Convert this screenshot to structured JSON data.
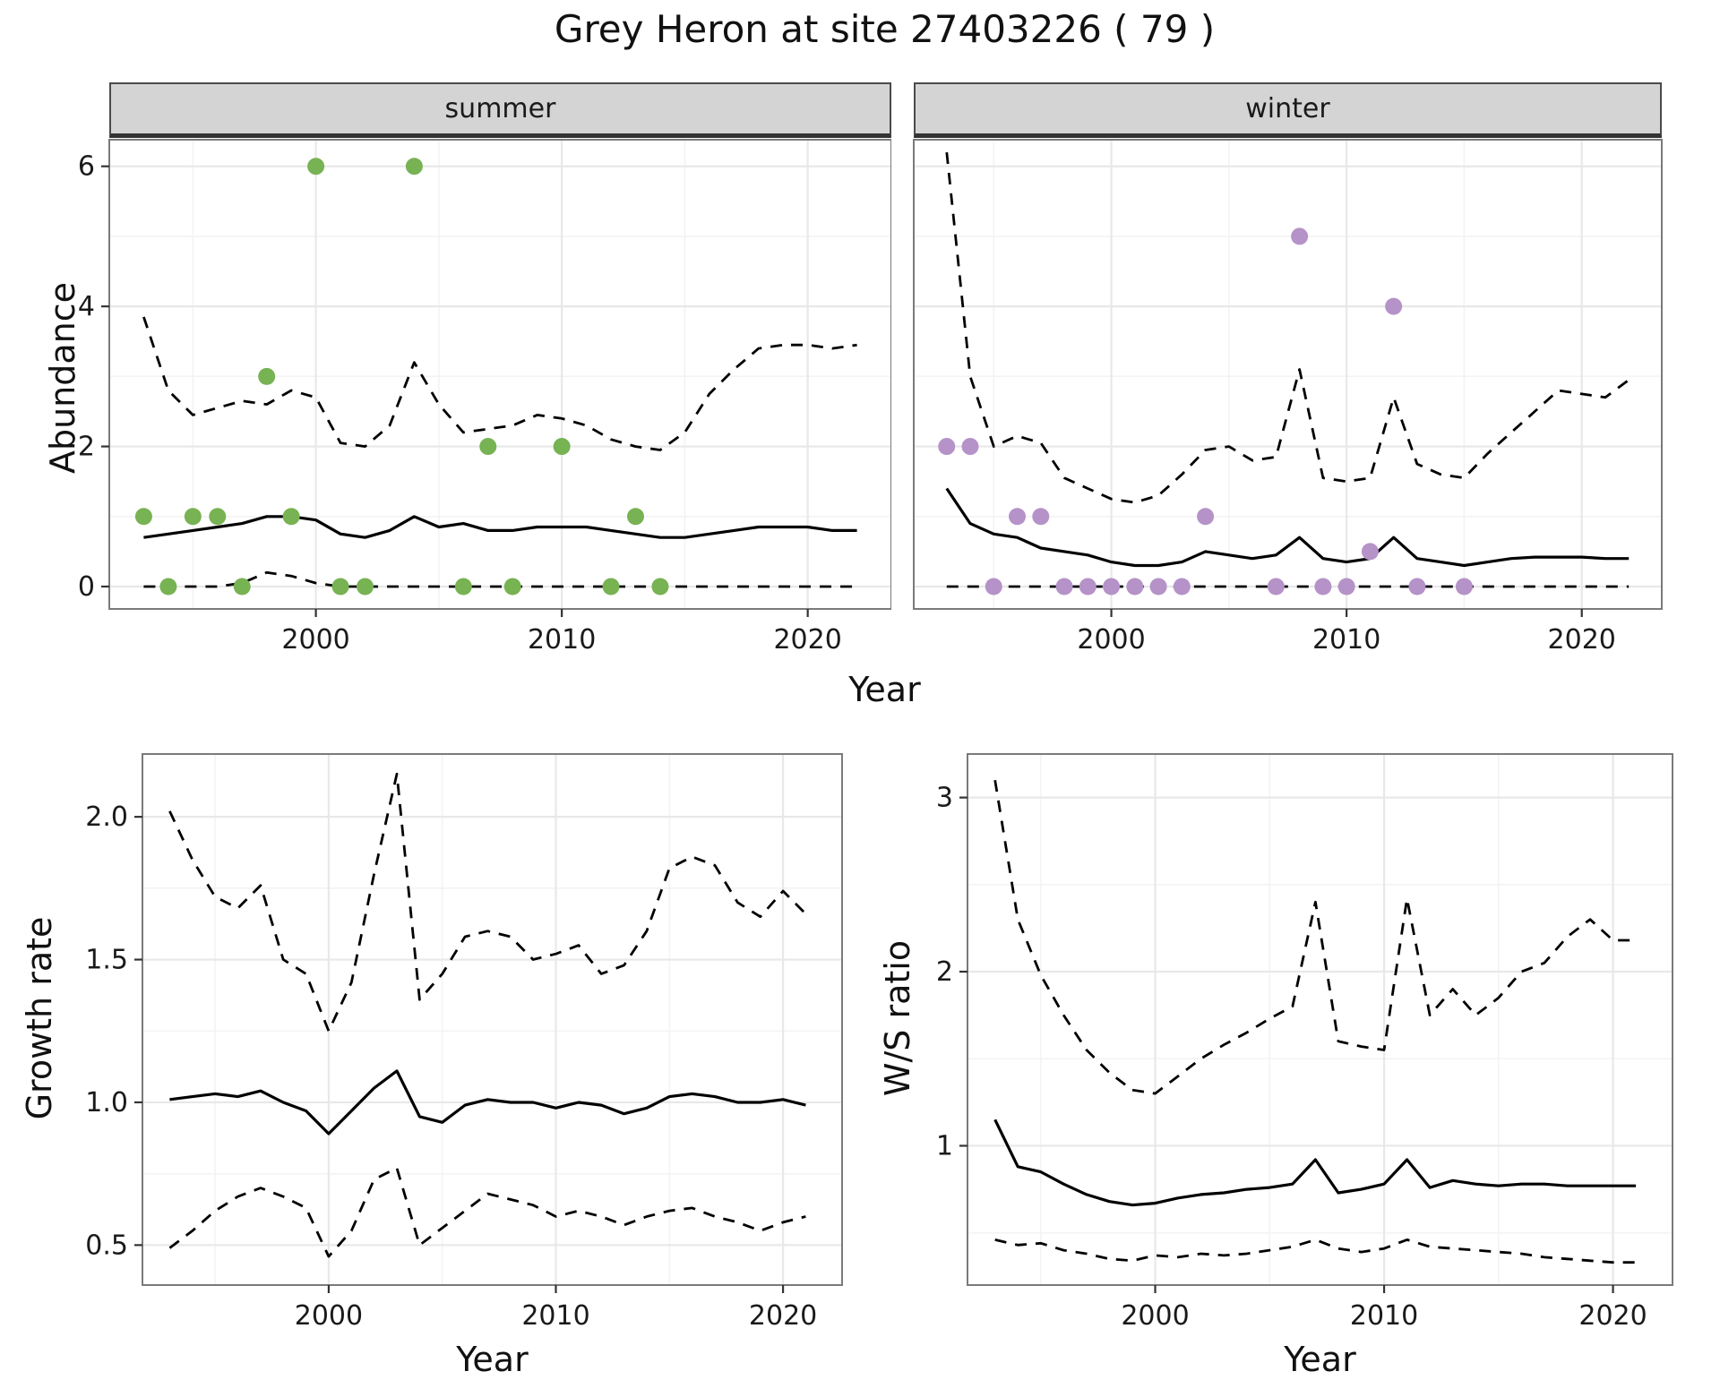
{
  "title": "Grey Heron at site 27403226 ( 79 )",
  "facets": {
    "summer_label": "summer",
    "winter_label": "winter"
  },
  "axis_labels": {
    "abundance": "Abundance",
    "year_top": "Year",
    "growth": "Growth rate",
    "ws": "W/S ratio",
    "year_bottom_left": "Year",
    "year_bottom_right": "Year"
  },
  "colors": {
    "summer_point": "#77b253",
    "winter_point": "#b592c8",
    "line": "#000000",
    "grid_major": "#e8e8e8",
    "grid_minor": "#f3f3f3",
    "panel_border": "#7a7a7a",
    "strip_bg": "#d4d4d4",
    "text": "#1a1a1a"
  },
  "chart_data": [
    {
      "id": "summer",
      "type": "line",
      "facet": "summer",
      "ylabel": "Abundance",
      "xlabel": "Year",
      "xlim": [
        1991.6,
        2023.4
      ],
      "ylim": [
        -0.32,
        6.38
      ],
      "x_ticks": [
        2000,
        2010,
        2020
      ],
      "x_minor": [
        1995,
        2005,
        2015
      ],
      "y_ticks": [
        0,
        2,
        4,
        6
      ],
      "y_tick_labels": [
        "0",
        "2",
        "4",
        "6"
      ],
      "y_minor": [
        1,
        3,
        5
      ],
      "show_y_labels": true,
      "years": [
        1993,
        1994,
        1995,
        1996,
        1997,
        1998,
        1999,
        2000,
        2001,
        2002,
        2003,
        2004,
        2005,
        2006,
        2007,
        2008,
        2009,
        2010,
        2011,
        2012,
        2013,
        2014,
        2015,
        2016,
        2017,
        2018,
        2019,
        2020,
        2021,
        2022
      ],
      "series": [
        {
          "name": "upper_ci",
          "style": "dashed",
          "values": [
            3.85,
            2.8,
            2.45,
            2.55,
            2.65,
            2.6,
            2.8,
            2.7,
            2.05,
            2.0,
            2.3,
            3.2,
            2.6,
            2.2,
            2.25,
            2.3,
            2.45,
            2.4,
            2.3,
            2.1,
            2.0,
            1.95,
            2.2,
            2.75,
            3.1,
            3.4,
            3.45,
            3.45,
            3.4,
            3.45
          ]
        },
        {
          "name": "fitted",
          "style": "solid",
          "values": [
            0.7,
            0.75,
            0.8,
            0.85,
            0.9,
            1.0,
            1.0,
            0.95,
            0.75,
            0.7,
            0.8,
            1.0,
            0.85,
            0.9,
            0.8,
            0.8,
            0.85,
            0.85,
            0.85,
            0.8,
            0.75,
            0.7,
            0.7,
            0.75,
            0.8,
            0.85,
            0.85,
            0.85,
            0.8,
            0.8
          ]
        },
        {
          "name": "lower_ci",
          "style": "dashed",
          "values": [
            0,
            0,
            0,
            0,
            0.05,
            0.2,
            0.15,
            0.05,
            0,
            0,
            0,
            0,
            0,
            0,
            0,
            0,
            0,
            0,
            0,
            0,
            0,
            0,
            0,
            0,
            0,
            0,
            0,
            0,
            0,
            0
          ]
        }
      ],
      "points": {
        "name": "observed_counts_summer",
        "color_key": "summer_point",
        "x": [
          1993,
          1994,
          1995,
          1996,
          1997,
          1998,
          1999,
          2000,
          2001,
          2002,
          2004,
          2006,
          2007,
          2008,
          2010,
          2012,
          2013,
          2014
        ],
        "y": [
          1,
          0,
          1,
          1,
          0,
          3,
          1,
          6,
          0,
          0,
          6,
          0,
          2,
          0,
          2,
          0,
          1,
          0
        ]
      }
    },
    {
      "id": "winter",
      "type": "line",
      "facet": "winter",
      "ylabel": "Abundance",
      "xlabel": "Year",
      "xlim": [
        1991.6,
        2023.4
      ],
      "ylim": [
        -0.32,
        6.38
      ],
      "x_ticks": [
        2000,
        2010,
        2020
      ],
      "x_minor": [
        1995,
        2005,
        2015
      ],
      "y_ticks": [
        0,
        2,
        4,
        6
      ],
      "y_tick_labels": [
        "0",
        "2",
        "4",
        "6"
      ],
      "y_minor": [
        1,
        3,
        5
      ],
      "show_y_labels": false,
      "years": [
        1993,
        1994,
        1995,
        1996,
        1997,
        1998,
        1999,
        2000,
        2001,
        2002,
        2003,
        2004,
        2005,
        2006,
        2007,
        2008,
        2009,
        2010,
        2011,
        2012,
        2013,
        2014,
        2015,
        2016,
        2017,
        2018,
        2019,
        2020,
        2021,
        2022
      ],
      "series": [
        {
          "name": "upper_ci",
          "style": "dashed",
          "values": [
            6.2,
            3.0,
            2.0,
            2.15,
            2.05,
            1.55,
            1.4,
            1.25,
            1.2,
            1.3,
            1.6,
            1.95,
            2.0,
            1.8,
            1.85,
            3.1,
            1.55,
            1.5,
            1.55,
            2.7,
            1.75,
            1.6,
            1.55,
            1.9,
            2.2,
            2.5,
            2.8,
            2.75,
            2.7,
            2.95
          ]
        },
        {
          "name": "fitted",
          "style": "solid",
          "values": [
            1.4,
            0.9,
            0.75,
            0.7,
            0.55,
            0.5,
            0.45,
            0.35,
            0.3,
            0.3,
            0.35,
            0.5,
            0.45,
            0.4,
            0.45,
            0.7,
            0.4,
            0.35,
            0.4,
            0.7,
            0.4,
            0.35,
            0.3,
            0.35,
            0.4,
            0.42,
            0.42,
            0.42,
            0.4,
            0.4
          ]
        },
        {
          "name": "lower_ci",
          "style": "dashed",
          "values": [
            0,
            0,
            0,
            0,
            0,
            0,
            0,
            0,
            0,
            0,
            0,
            0,
            0,
            0,
            0,
            0,
            0,
            0,
            0,
            0,
            0,
            0,
            0,
            0,
            0,
            0,
            0,
            0,
            0,
            0
          ]
        }
      ],
      "points": {
        "name": "observed_counts_winter",
        "color_key": "winter_point",
        "x": [
          1993,
          1994,
          1995,
          1996,
          1997,
          1998,
          1999,
          2000,
          2001,
          2002,
          2003,
          2004,
          2007,
          2008,
          2009,
          2010,
          2011,
          2012,
          2013,
          2015
        ],
        "y": [
          2,
          2,
          0,
          1,
          1,
          0,
          0,
          0,
          0,
          0,
          0,
          1,
          0,
          5,
          0,
          0,
          0.5,
          4,
          0,
          0
        ]
      }
    },
    {
      "id": "growth",
      "type": "line",
      "ylabel": "Growth rate",
      "xlabel": "Year",
      "xlim": [
        1991.8,
        2022.6
      ],
      "ylim": [
        0.36,
        2.22
      ],
      "x_ticks": [
        2000,
        2010,
        2020
      ],
      "x_minor": [
        1995,
        2005,
        2015
      ],
      "y_ticks": [
        0.5,
        1.0,
        1.5,
        2.0
      ],
      "y_tick_labels": [
        "0.5",
        "1.0",
        "1.5",
        "2.0"
      ],
      "y_minor": [
        0.75,
        1.25,
        1.75
      ],
      "show_y_labels": true,
      "years": [
        1993,
        1994,
        1995,
        1996,
        1997,
        1998,
        1999,
        2000,
        2001,
        2002,
        2003,
        2004,
        2005,
        2006,
        2007,
        2008,
        2009,
        2010,
        2011,
        2012,
        2013,
        2014,
        2015,
        2016,
        2017,
        2018,
        2019,
        2020,
        2021
      ],
      "series": [
        {
          "name": "upper_ci",
          "style": "dashed",
          "values": [
            2.02,
            1.85,
            1.72,
            1.68,
            1.76,
            1.5,
            1.45,
            1.25,
            1.42,
            1.8,
            2.15,
            1.36,
            1.45,
            1.58,
            1.6,
            1.58,
            1.5,
            1.52,
            1.55,
            1.45,
            1.48,
            1.6,
            1.82,
            1.86,
            1.83,
            1.7,
            1.65,
            1.74,
            1.66
          ]
        },
        {
          "name": "fitted",
          "style": "solid",
          "values": [
            1.01,
            1.02,
            1.03,
            1.02,
            1.04,
            1.0,
            0.97,
            0.89,
            0.97,
            1.05,
            1.11,
            0.95,
            0.93,
            0.99,
            1.01,
            1.0,
            1.0,
            0.98,
            1.0,
            0.99,
            0.96,
            0.98,
            1.02,
            1.03,
            1.02,
            1.0,
            1.0,
            1.01,
            0.99
          ]
        },
        {
          "name": "lower_ci",
          "style": "dashed",
          "values": [
            0.49,
            0.55,
            0.62,
            0.67,
            0.7,
            0.67,
            0.63,
            0.46,
            0.55,
            0.73,
            0.77,
            0.5,
            0.56,
            0.62,
            0.68,
            0.66,
            0.64,
            0.6,
            0.62,
            0.6,
            0.57,
            0.6,
            0.62,
            0.63,
            0.6,
            0.58,
            0.55,
            0.58,
            0.6
          ]
        }
      ]
    },
    {
      "id": "ws",
      "type": "line",
      "ylabel": "W/S ratio",
      "xlabel": "Year",
      "xlim": [
        1991.8,
        2022.6
      ],
      "ylim": [
        0.2,
        3.25
      ],
      "x_ticks": [
        2000,
        2010,
        2020
      ],
      "x_minor": [
        1995,
        2005,
        2015
      ],
      "y_ticks": [
        1,
        2,
        3
      ],
      "y_tick_labels": [
        "1",
        "2",
        "3"
      ],
      "y_minor": [
        0.5,
        1.5,
        2.5
      ],
      "show_y_labels": true,
      "years": [
        1993,
        1994,
        1995,
        1996,
        1997,
        1998,
        1999,
        2000,
        2001,
        2002,
        2003,
        2004,
        2005,
        2006,
        2007,
        2008,
        2009,
        2010,
        2011,
        2012,
        2013,
        2014,
        2015,
        2016,
        2017,
        2018,
        2019,
        2020,
        2021
      ],
      "series": [
        {
          "name": "upper_ci",
          "style": "dashed",
          "values": [
            3.1,
            2.3,
            1.98,
            1.75,
            1.55,
            1.42,
            1.32,
            1.3,
            1.4,
            1.5,
            1.58,
            1.65,
            1.73,
            1.8,
            2.4,
            1.6,
            1.57,
            1.55,
            2.42,
            1.75,
            1.9,
            1.75,
            1.85,
            2.0,
            2.05,
            2.2,
            2.3,
            2.18,
            2.18
          ]
        },
        {
          "name": "fitted",
          "style": "solid",
          "values": [
            1.15,
            0.88,
            0.85,
            0.78,
            0.72,
            0.68,
            0.66,
            0.67,
            0.7,
            0.72,
            0.73,
            0.75,
            0.76,
            0.78,
            0.92,
            0.73,
            0.75,
            0.78,
            0.92,
            0.76,
            0.8,
            0.78,
            0.77,
            0.78,
            0.78,
            0.77,
            0.77,
            0.77,
            0.77
          ]
        },
        {
          "name": "lower_ci",
          "style": "dashed",
          "values": [
            0.46,
            0.43,
            0.44,
            0.4,
            0.38,
            0.35,
            0.34,
            0.37,
            0.36,
            0.38,
            0.37,
            0.38,
            0.4,
            0.42,
            0.46,
            0.41,
            0.39,
            0.41,
            0.46,
            0.42,
            0.41,
            0.4,
            0.39,
            0.38,
            0.36,
            0.35,
            0.34,
            0.33,
            0.33
          ]
        }
      ]
    }
  ]
}
